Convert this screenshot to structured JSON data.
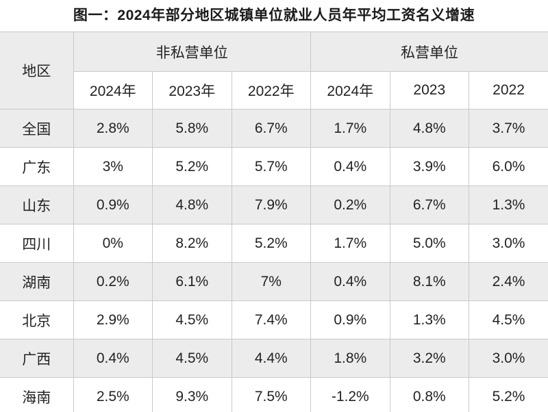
{
  "title": "图一：2024年部分地区城镇单位就业人员年平均工资名义增速",
  "chart_data": {
    "type": "table",
    "title": "图一：2024年部分地区城镇单位就业人员年平均工资名义增速",
    "region_header": "地区",
    "groups": [
      {
        "label": "非私营单位",
        "years": [
          "2024年",
          "2023年",
          "2022年"
        ]
      },
      {
        "label": "私营单位",
        "years": [
          "2024年",
          "2023",
          "2022"
        ]
      }
    ],
    "rows": [
      {
        "region": "全国",
        "values": [
          "2.8%",
          "5.8%",
          "6.7%",
          "1.7%",
          "4.8%",
          "3.7%"
        ]
      },
      {
        "region": "广东",
        "values": [
          "3%",
          "5.2%",
          "5.7%",
          "0.4%",
          "3.9%",
          "6.0%"
        ]
      },
      {
        "region": "山东",
        "values": [
          "0.9%",
          "4.8%",
          "7.9%",
          "0.2%",
          "6.7%",
          "1.3%"
        ]
      },
      {
        "region": "四川",
        "values": [
          "0%",
          "8.2%",
          "5.2%",
          "1.7%",
          "5.0%",
          "3.0%"
        ]
      },
      {
        "region": "湖南",
        "values": [
          "0.2%",
          "6.1%",
          "7%",
          "0.4%",
          "8.1%",
          "2.4%"
        ]
      },
      {
        "region": "北京",
        "values": [
          "2.9%",
          "4.5%",
          "7.4%",
          "0.9%",
          "1.3%",
          "4.5%"
        ]
      },
      {
        "region": "广西",
        "values": [
          "0.4%",
          "4.5%",
          "4.4%",
          "1.8%",
          "3.2%",
          "3.0%"
        ]
      },
      {
        "region": "海南",
        "values": [
          "2.5%",
          "9.3%",
          "7.5%",
          "-1.2%",
          "0.8%",
          "5.2%"
        ]
      }
    ]
  },
  "colors": {
    "row_alt_bg": "#ececec",
    "border": "#c9c9c9",
    "text": "#232323"
  }
}
